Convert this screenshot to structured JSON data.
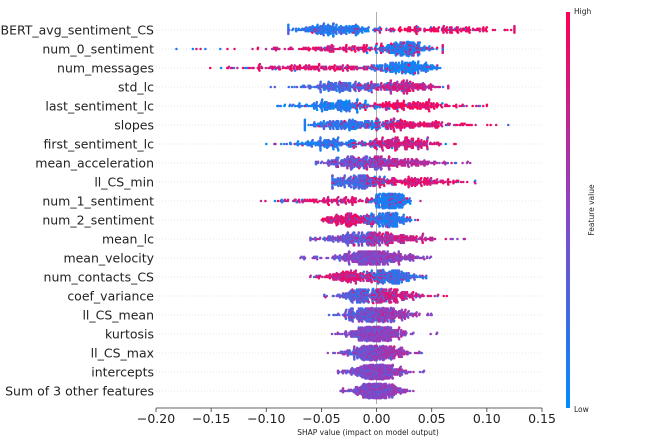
{
  "chart_data": {
    "type": "beeswarm",
    "xlabel": "SHAP value (impact on model output)",
    "xlim": [
      -0.2,
      0.15
    ],
    "xticks": [
      -0.2,
      -0.15,
      -0.1,
      -0.05,
      0.0,
      0.05,
      0.1,
      0.15
    ],
    "xtick_labels": [
      "−0.20",
      "−0.15",
      "−0.10",
      "−0.05",
      "0.00",
      "0.05",
      "0.10",
      "0.15"
    ],
    "colorbar": {
      "title": "Feature value",
      "high_label": "High",
      "low_label": "Low",
      "high_color": "#ff0052",
      "low_color": "#008bfb"
    },
    "features": [
      {
        "name": "BERT_avg_sentiment_CS",
        "min": -0.08,
        "max": 0.125,
        "clusters": [
          {
            "center": -0.04,
            "spread": 0.02,
            "weight": 0.55,
            "value": 0.15
          },
          {
            "center": 0.06,
            "spread": 0.028,
            "weight": 0.45,
            "value": 0.9
          }
        ]
      },
      {
        "name": "num_0_sentiment",
        "min": -0.185,
        "max": 0.06,
        "clusters": [
          {
            "center": 0.025,
            "spread": 0.012,
            "weight": 0.55,
            "value": 0.1
          },
          {
            "center": -0.02,
            "spread": 0.045,
            "weight": 0.45,
            "value": 0.85
          }
        ]
      },
      {
        "name": "num_messages",
        "min": -0.155,
        "max": 0.075,
        "clusters": [
          {
            "center": 0.025,
            "spread": 0.015,
            "weight": 0.55,
            "value": 0.1
          },
          {
            "center": -0.05,
            "spread": 0.04,
            "weight": 0.45,
            "value": 0.85
          }
        ]
      },
      {
        "name": "std_lc",
        "min": -0.1,
        "max": 0.065,
        "clusters": [
          {
            "center": -0.03,
            "spread": 0.022,
            "weight": 0.5,
            "value": 0.25
          },
          {
            "center": 0.02,
            "spread": 0.018,
            "weight": 0.5,
            "value": 0.75
          }
        ]
      },
      {
        "name": "last_sentiment_lc",
        "min": -0.09,
        "max": 0.1,
        "clusters": [
          {
            "center": -0.035,
            "spread": 0.02,
            "weight": 0.5,
            "value": 0.1
          },
          {
            "center": 0.03,
            "spread": 0.022,
            "weight": 0.5,
            "value": 0.9
          }
        ]
      },
      {
        "name": "slopes",
        "min": -0.065,
        "max": 0.13,
        "clusters": [
          {
            "center": -0.025,
            "spread": 0.02,
            "weight": 0.5,
            "value": 0.15
          },
          {
            "center": 0.025,
            "spread": 0.025,
            "weight": 0.5,
            "value": 0.85
          }
        ]
      },
      {
        "name": "first_sentiment_lc",
        "min": -0.1,
        "max": 0.075,
        "clusters": [
          {
            "center": -0.04,
            "spread": 0.02,
            "weight": 0.45,
            "value": 0.15
          },
          {
            "center": 0.02,
            "spread": 0.018,
            "weight": 0.55,
            "value": 0.8
          }
        ]
      },
      {
        "name": "mean_acceleration",
        "min": -0.055,
        "max": 0.085,
        "clusters": [
          {
            "center": -0.02,
            "spread": 0.015,
            "weight": 0.5,
            "value": 0.35
          },
          {
            "center": 0.015,
            "spread": 0.02,
            "weight": 0.5,
            "value": 0.7
          }
        ]
      },
      {
        "name": "ll_CS_min",
        "min": -0.04,
        "max": 0.09,
        "clusters": [
          {
            "center": -0.02,
            "spread": 0.012,
            "weight": 0.5,
            "value": 0.25
          },
          {
            "center": 0.03,
            "spread": 0.025,
            "weight": 0.5,
            "value": 0.85
          }
        ]
      },
      {
        "name": "num_1_sentiment",
        "min": -0.105,
        "max": 0.04,
        "clusters": [
          {
            "center": 0.012,
            "spread": 0.008,
            "weight": 0.6,
            "value": 0.1
          },
          {
            "center": -0.03,
            "spread": 0.03,
            "weight": 0.4,
            "value": 0.85
          }
        ]
      },
      {
        "name": "num_2_sentiment",
        "min": -0.055,
        "max": 0.04,
        "clusters": [
          {
            "center": 0.01,
            "spread": 0.01,
            "weight": 0.55,
            "value": 0.15
          },
          {
            "center": -0.025,
            "spread": 0.012,
            "weight": 0.45,
            "value": 0.85
          }
        ]
      },
      {
        "name": "mean_lc",
        "min": -0.06,
        "max": 0.08,
        "clusters": [
          {
            "center": -0.015,
            "spread": 0.018,
            "weight": 0.5,
            "value": 0.35
          },
          {
            "center": 0.015,
            "spread": 0.02,
            "weight": 0.5,
            "value": 0.75
          }
        ]
      },
      {
        "name": "mean_velocity",
        "min": -0.07,
        "max": 0.05,
        "clusters": [
          {
            "center": -0.015,
            "spread": 0.015,
            "weight": 0.5,
            "value": 0.45
          },
          {
            "center": 0.01,
            "spread": 0.015,
            "weight": 0.5,
            "value": 0.55
          }
        ]
      },
      {
        "name": "num_contacts_CS",
        "min": -0.065,
        "max": 0.045,
        "clusters": [
          {
            "center": 0.015,
            "spread": 0.012,
            "weight": 0.5,
            "value": 0.2
          },
          {
            "center": -0.02,
            "spread": 0.015,
            "weight": 0.5,
            "value": 0.8
          }
        ]
      },
      {
        "name": "coef_variance",
        "min": -0.05,
        "max": 0.065,
        "clusters": [
          {
            "center": -0.01,
            "spread": 0.012,
            "weight": 0.5,
            "value": 0.3
          },
          {
            "center": 0.015,
            "spread": 0.015,
            "weight": 0.5,
            "value": 0.8
          }
        ]
      },
      {
        "name": "ll_CS_mean",
        "min": -0.045,
        "max": 0.05,
        "clusters": [
          {
            "center": -0.01,
            "spread": 0.012,
            "weight": 0.5,
            "value": 0.35
          },
          {
            "center": 0.01,
            "spread": 0.013,
            "weight": 0.5,
            "value": 0.6
          }
        ]
      },
      {
        "name": "kurtosis",
        "min": -0.05,
        "max": 0.055,
        "clusters": [
          {
            "center": -0.005,
            "spread": 0.01,
            "weight": 0.5,
            "value": 0.45
          },
          {
            "center": 0.005,
            "spread": 0.012,
            "weight": 0.5,
            "value": 0.55
          }
        ]
      },
      {
        "name": "ll_CS_max",
        "min": -0.045,
        "max": 0.045,
        "clusters": [
          {
            "center": -0.008,
            "spread": 0.01,
            "weight": 0.5,
            "value": 0.4
          },
          {
            "center": 0.008,
            "spread": 0.012,
            "weight": 0.5,
            "value": 0.6
          }
        ]
      },
      {
        "name": "intercepts",
        "min": -0.035,
        "max": 0.045,
        "clusters": [
          {
            "center": -0.005,
            "spread": 0.01,
            "weight": 0.5,
            "value": 0.45
          },
          {
            "center": 0.005,
            "spread": 0.01,
            "weight": 0.5,
            "value": 0.55
          }
        ]
      },
      {
        "name": "Sum of 3 other features",
        "min": -0.035,
        "max": 0.035,
        "clusters": [
          {
            "center": -0.005,
            "spread": 0.009,
            "weight": 0.5,
            "value": 0.45
          },
          {
            "center": 0.005,
            "spread": 0.009,
            "weight": 0.5,
            "value": 0.55
          }
        ]
      }
    ]
  }
}
